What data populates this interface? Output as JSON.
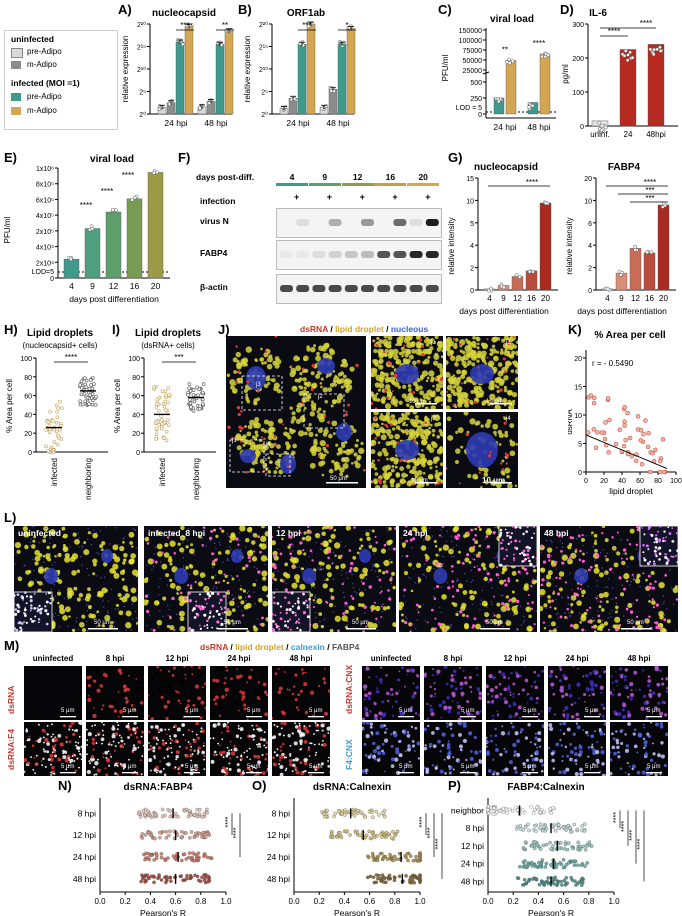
{
  "colors": {
    "uninf_pre": "#d9d9d9",
    "uninf_m": "#8c8c8c",
    "inf_pre": "#3f9a8c",
    "inf_m": "#d4a651",
    "red": "#b62a1f",
    "gold": "#e6c95a"
  },
  "legend": {
    "uninfected": "uninfected",
    "pre": "pre-Adipo",
    "m": "m-Adipo",
    "infected": "infected (MOI =1)"
  },
  "panels": {
    "A": "A)",
    "B": "B)",
    "C": "C)",
    "D": "D)",
    "E": "E)",
    "F": "F)",
    "G": "G)",
    "H": "H)",
    "I": "I)",
    "J": "J)",
    "K": "K)",
    "L": "L)",
    "M": "M)",
    "N": "N)",
    "O": "O)",
    "P": "P)"
  },
  "chart_data": [
    {
      "id": "A",
      "type": "bar",
      "title": "nucleocapsid",
      "ylabel": "relative expression",
      "yscale": "log2",
      "yticks": [
        "2⁰",
        "2⁵",
        "2¹⁰",
        "2¹⁵",
        "2²⁰"
      ],
      "categories": [
        "24 hpi",
        "48 hpi"
      ],
      "series": [
        {
          "name": "uninfected pre-Adipo",
          "values": [
            1.5,
            1.6
          ]
        },
        {
          "name": "uninfected m-Adipo",
          "values": [
            2.5,
            2.8
          ]
        },
        {
          "name": "infected pre-Adipo",
          "values": [
            16,
            15.5
          ]
        },
        {
          "name": "infected m-Adipo",
          "values": [
            19.5,
            18.5
          ]
        }
      ],
      "sig": [
        "***",
        "**"
      ]
    },
    {
      "id": "B",
      "type": "bar",
      "title": "ORF1ab",
      "ylabel": "relative expression",
      "yscale": "log2",
      "yticks": [
        "2⁰",
        "2⁵",
        "2¹⁰",
        "2¹⁵",
        "2²⁰"
      ],
      "categories": [
        "24 hpi",
        "48 hpi"
      ],
      "series": [
        {
          "name": "uninfected pre-Adipo",
          "values": [
            1.2,
            1.5
          ]
        },
        {
          "name": "uninfected m-Adipo",
          "values": [
            3.5,
            5.5
          ]
        },
        {
          "name": "infected pre-Adipo",
          "values": [
            15.5,
            15.5
          ]
        },
        {
          "name": "infected m-Adipo",
          "values": [
            20,
            19
          ]
        }
      ],
      "sig": [
        "***",
        "*"
      ]
    },
    {
      "id": "C",
      "type": "bar",
      "title": "viral load",
      "ylabel": "PFU/ml",
      "yticks_low": [
        "0",
        "250",
        "500"
      ],
      "yticks_high": [
        "25000",
        "50000",
        "75000",
        "100000",
        "150000"
      ],
      "lod": "LOD = 5",
      "categories": [
        "24 hpi",
        "48 hpi"
      ],
      "series": [
        {
          "name": "pre-Adipo",
          "values": [
            250,
            180
          ]
        },
        {
          "name": "m-Adipo",
          "values": [
            55000,
            75000
          ]
        }
      ],
      "sig": [
        "**",
        "****"
      ]
    },
    {
      "id": "D",
      "type": "bar",
      "title": "IL-6",
      "ylabel": "pg/ml",
      "yticks": [
        "0",
        "100",
        "200",
        "300"
      ],
      "categories": [
        "uninf.",
        "24",
        "48hpi"
      ],
      "values": [
        15,
        225,
        240
      ],
      "sig": [
        "****",
        "****"
      ]
    },
    {
      "id": "E",
      "type": "bar",
      "title": "viral load",
      "ylabel": "PFU/ml",
      "xlabel": "days post differentiation",
      "yticks": [
        "0",
        "2x10⁴",
        "4x10⁴",
        "2x10⁵",
        "4x10⁵",
        "6x10⁵",
        "8x10⁵",
        "1x10⁶"
      ],
      "lod": "LOD=5",
      "categories": [
        "4",
        "9",
        "12",
        "16",
        "20"
      ],
      "values": [
        12000,
        38000,
        220000,
        380000,
        790000
      ],
      "sig": [
        "****",
        "****",
        "****"
      ]
    },
    {
      "id": "G1",
      "type": "bar",
      "title": "nucleocapsid",
      "ylabel": "relative intensity",
      "xlabel": "days post differentiation",
      "yticks": [
        "0",
        "2",
        "4",
        "5",
        "10",
        "15"
      ],
      "categories": [
        "4",
        "9",
        "12",
        "16",
        "20"
      ],
      "values": [
        0.1,
        0.4,
        1.2,
        1.7,
        12
      ],
      "sig": [
        "****"
      ]
    },
    {
      "id": "G2",
      "type": "bar",
      "title": "FABP4",
      "ylabel": "relative intensity",
      "xlabel": "days post differentiation",
      "yticks": [
        "0",
        "2",
        "4",
        "6",
        "10",
        "20"
      ],
      "categories": [
        "4",
        "9",
        "12",
        "16",
        "20"
      ],
      "values": [
        0.1,
        1.5,
        3.7,
        3.3,
        15
      ],
      "sig": [
        "****",
        "***",
        "***"
      ]
    },
    {
      "id": "H",
      "type": "scatter",
      "title": "Lipid droplets",
      "subtitle": "(nucleocapsid+ cells)",
      "ylabel": "% Area per cell",
      "yticks": [
        "0",
        "20",
        "40",
        "60",
        "80",
        "100"
      ],
      "categories": [
        "infected",
        "neighboring"
      ],
      "means": [
        26,
        65
      ],
      "sig": [
        "****"
      ]
    },
    {
      "id": "I",
      "type": "scatter",
      "title": "Lipid droplets",
      "subtitle": "(dsRNA+ cells)",
      "ylabel": "% Area per cell",
      "yticks": [
        "0",
        "20",
        "40",
        "60",
        "80",
        "100"
      ],
      "categories": [
        "infected",
        "neighboring"
      ],
      "means": [
        40,
        58
      ],
      "sig": [
        "***"
      ]
    },
    {
      "id": "K",
      "type": "scatter",
      "title": "% Area per cell",
      "xlabel": "lipid droplet",
      "ylabel": "dsRNA",
      "annotation": "r = - 0.5490",
      "xticks": [
        "0",
        "20",
        "40",
        "60",
        "80",
        "100"
      ],
      "yticks": [
        "0",
        "5",
        "10",
        "15",
        "20"
      ]
    },
    {
      "id": "N",
      "type": "scatter",
      "title": "dsRNA:FABP4",
      "xlabel": "Pearson's R",
      "categories": [
        "8 hpi",
        "12 hpi",
        "24 hpi",
        "48 hpi"
      ],
      "means": [
        0.58,
        0.6,
        0.62,
        0.6
      ],
      "xticks": [
        "0.0",
        "0.2",
        "0.4",
        "0.6",
        "0.8",
        "1.0"
      ],
      "sig": [
        "****",
        "****"
      ]
    },
    {
      "id": "O",
      "type": "scatter",
      "title": "dsRNA:Calnexin",
      "xlabel": "Pearson's R",
      "categories": [
        "8 hpi",
        "12 hpi",
        "24 hpi",
        "48 hpi"
      ],
      "means": [
        0.45,
        0.55,
        0.85,
        0.86
      ],
      "xticks": [
        "0.0",
        "0.2",
        "0.4",
        "0.6",
        "0.8",
        "1.0"
      ],
      "sig": [
        "****",
        "****",
        "****"
      ]
    },
    {
      "id": "P",
      "type": "scatter",
      "title": "FABP4:Calnexin",
      "xlabel": "Pearson's R",
      "categories": [
        "neighbor",
        "8 hpi",
        "12 hpi",
        "24 hpi",
        "48 hpi"
      ],
      "means": [
        0.25,
        0.5,
        0.55,
        0.52,
        0.5
      ],
      "xticks": [
        "0.0",
        "0.2",
        "0.4",
        "0.6",
        "0.8",
        "1.0"
      ],
      "sig": [
        "****",
        "****",
        "****",
        "****"
      ]
    }
  ],
  "blot": {
    "header": "days post-diff.",
    "days": [
      "4",
      "9",
      "12",
      "16",
      "20"
    ],
    "infection": "infection",
    "plus": "+",
    "rows": [
      "virus N",
      "FABP4",
      "β-actin"
    ]
  },
  "J": {
    "title_dsrna": "dsRNA",
    "title_lipid": "lipid droplet",
    "title_nuc": "nucleous",
    "sep": " / ",
    "insets": [
      "j1",
      "j2",
      "j3",
      "j4"
    ],
    "sb_main": "50 μm",
    "sb_j1": "10 μm",
    "sb_j2": "10 μm",
    "sb_j3": "10 μm",
    "sb_j4": "10 μm"
  },
  "L": {
    "labels": [
      "uninfected",
      "infected_8 hpi",
      "12 hpi",
      "24 hpi",
      "48 hpi"
    ],
    "sb": "50 μm",
    "sb_inset": "5 μm"
  },
  "M": {
    "title_a": "dsRNA",
    "title_b": "lipid droplet",
    "title_c": "calnexin",
    "title_d": "FABP4",
    "sep": " / ",
    "cols": [
      "uninfected",
      "8 hpi",
      "12 hpi",
      "24 hpi",
      "48 hpi"
    ],
    "row1": "dsRNA",
    "row2": "dsRNA:F4",
    "row3": "dsRNA:CNX",
    "row4": "F4:CNX",
    "sb": "5 μm"
  }
}
